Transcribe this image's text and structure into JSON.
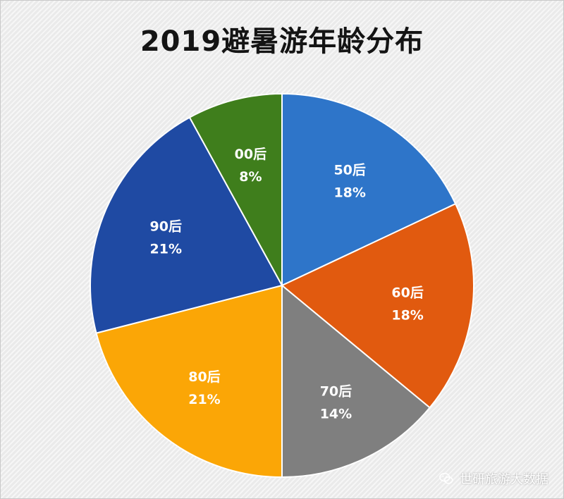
{
  "chart_data": {
    "type": "pie",
    "title": "2019避暑游年龄分布",
    "slices": [
      {
        "label": "50后",
        "value": 18,
        "value_label": "18%",
        "color": "#2e75c9",
        "text_color": "#ffffff"
      },
      {
        "label": "60后",
        "value": 18,
        "value_label": "18%",
        "color": "#e15a0f",
        "text_color": "#ffffff"
      },
      {
        "label": "70后",
        "value": 14,
        "value_label": "14%",
        "color": "#7f7f7f",
        "text_color": "#ffffff"
      },
      {
        "label": "80后",
        "value": 21,
        "value_label": "21%",
        "color": "#fba606",
        "text_color": "#ffffff"
      },
      {
        "label": "90后",
        "value": 21,
        "value_label": "21%",
        "color": "#1f4aa3",
        "text_color": "#ffffff"
      },
      {
        "label": "00后",
        "value": 8,
        "value_label": "8%",
        "color": "#3f7e1c",
        "text_color": "#ffffff"
      }
    ]
  },
  "watermark": {
    "text": "世研旅游大数据",
    "icon": "wechat-icon"
  }
}
